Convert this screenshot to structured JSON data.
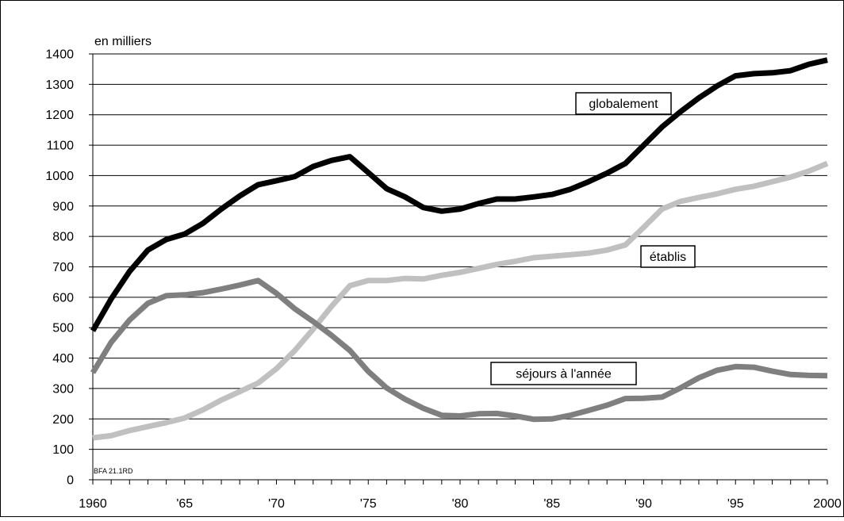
{
  "chart_data": {
    "type": "line",
    "unit_label": "en milliers",
    "source_note": "BFA 21.1RD",
    "ylim": [
      0,
      1400
    ],
    "y_ticks": [
      "0",
      "100",
      "200",
      "300",
      "400",
      "500",
      "600",
      "700",
      "800",
      "900",
      "1000",
      "1100",
      "1200",
      "1300",
      "1400"
    ],
    "xlim": [
      1960,
      2000
    ],
    "x_ticks": [
      {
        "year": 1960,
        "label": "1960"
      },
      {
        "year": 1965,
        "label": "'65"
      },
      {
        "year": 1970,
        "label": "'70"
      },
      {
        "year": 1975,
        "label": "'75"
      },
      {
        "year": 1980,
        "label": "'80"
      },
      {
        "year": 1985,
        "label": "'85"
      },
      {
        "year": 1990,
        "label": "'90"
      },
      {
        "year": 1995,
        "label": "'95"
      },
      {
        "year": 2000,
        "label": "2000"
      }
    ],
    "grid": "horizontal",
    "x": [
      1960,
      1961,
      1962,
      1963,
      1964,
      1965,
      1966,
      1967,
      1968,
      1969,
      1970,
      1971,
      1972,
      1973,
      1974,
      1975,
      1976,
      1977,
      1978,
      1979,
      1980,
      1981,
      1982,
      1983,
      1984,
      1985,
      1986,
      1987,
      1988,
      1989,
      1990,
      1991,
      1992,
      1993,
      1994,
      1995,
      1996,
      1997,
      1998,
      1999,
      2000
    ],
    "series": [
      {
        "name": "globalement",
        "color": "#000000",
        "values": [
          490,
          595,
          685,
          755,
          790,
          808,
          843,
          890,
          933,
          970,
          983,
          997,
          1030,
          1050,
          1062,
          1010,
          957,
          930,
          895,
          883,
          890,
          908,
          923,
          923,
          930,
          938,
          955,
          980,
          1008,
          1040,
          1100,
          1160,
          1210,
          1255,
          1295,
          1328,
          1335,
          1338,
          1345,
          1366,
          1380
        ]
      },
      {
        "name": "établis",
        "color": "#c0c0c0",
        "values": [
          138,
          145,
          162,
          175,
          188,
          203,
          230,
          262,
          290,
          318,
          365,
          425,
          495,
          570,
          638,
          655,
          655,
          662,
          660,
          672,
          682,
          695,
          708,
          718,
          730,
          735,
          740,
          745,
          755,
          772,
          830,
          890,
          915,
          928,
          940,
          955,
          965,
          980,
          995,
          1015,
          1040
        ]
      },
      {
        "name": "séjours à l'année",
        "color": "#7f7f7f",
        "values": [
          352,
          452,
          525,
          580,
          605,
          608,
          615,
          627,
          640,
          655,
          613,
          562,
          520,
          475,
          425,
          356,
          302,
          265,
          235,
          212,
          210,
          217,
          218,
          210,
          199,
          200,
          212,
          228,
          245,
          267,
          268,
          272,
          302,
          335,
          360,
          372,
          370,
          357,
          346,
          343,
          342
        ]
      }
    ],
    "legend": "none"
  }
}
